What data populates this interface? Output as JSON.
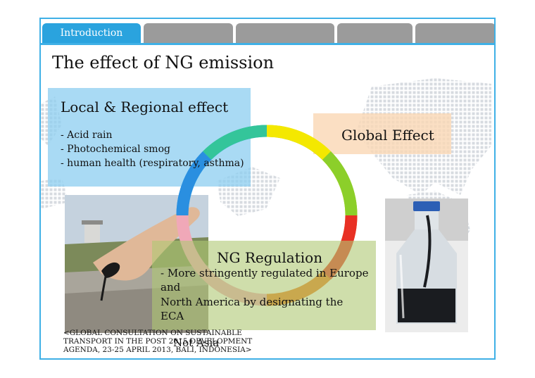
{
  "tabs": [
    {
      "label": "Introduction",
      "active": true
    },
    {
      "label": "",
      "active": false
    },
    {
      "label": "",
      "active": false
    },
    {
      "label": "",
      "active": false
    },
    {
      "label": "",
      "active": false
    }
  ],
  "title": "The effect of NG emission",
  "local": {
    "title": "Local & Regional effect",
    "bullets": [
      "- Acid rain",
      "- Photochemical smog",
      "- human health (respiratory, asthma)"
    ]
  },
  "global": {
    "title": "Global Effect"
  },
  "regulation": {
    "title": "NG Regulation",
    "lines": [
      "- More stringently regulated in Europe",
      "and",
      "  North America by designating the",
      "ECA"
    ]
  },
  "not_asia": "Not Asia",
  "source_lines": [
    "<GLOBAL CONSULTATION ON SUSTAINABLE",
    "TRANSPORT IN THE POST 2015 DEVELOPMENT",
    "AGENDA, 23-25 APRIL 2013, BALI, INDONESIA>"
  ],
  "colors": {
    "accent": "#2aa3de",
    "inactive_tab": "#9b9b9b",
    "frame": "#3fb0e6"
  },
  "icons": [
    "world-map-graphic",
    "color-ring-graphic",
    "oil-on-hand-photo",
    "oil-bottle-photo"
  ]
}
